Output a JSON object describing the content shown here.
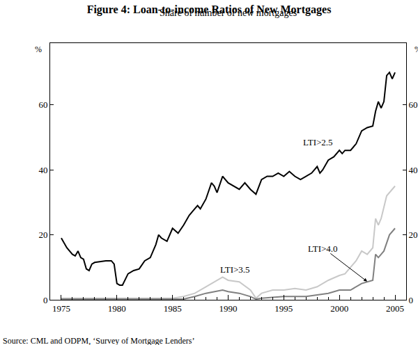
{
  "chart_data": {
    "type": "line",
    "title": "Figure 4: Loan-to-income Ratios of New Mortgages",
    "subtitle": "Share of number of new mortgages",
    "source": "Source: CML and ODPM, ‘Survey of Mortgage Lenders’",
    "ylabel": "%",
    "y2label": "%",
    "xlim": [
      1974,
      2006
    ],
    "xticks": [
      1975,
      1980,
      1985,
      1990,
      1995,
      2000,
      2005
    ],
    "ylim": [
      0,
      79
    ],
    "yticks": [
      0,
      20,
      40,
      60
    ],
    "y2lim": [
      0,
      79
    ],
    "y2ticks": [
      0,
      20,
      40,
      60
    ],
    "grid": false,
    "series": [
      {
        "name": "LTI>2.5",
        "color": "#000000",
        "x": [
          1975,
          1975.5,
          1976,
          1976.25,
          1976.5,
          1976.75,
          1977,
          1977.25,
          1977.5,
          1977.75,
          1978,
          1979,
          1979.5,
          1979.75,
          1980,
          1980.25,
          1980.5,
          1981,
          1981.5,
          1982,
          1982.5,
          1983,
          1983.5,
          1983.75,
          1984,
          1984.5,
          1985,
          1985.5,
          1986,
          1986.5,
          1987,
          1987.25,
          1987.5,
          1988,
          1988.5,
          1988.75,
          1989,
          1989.5,
          1990,
          1990.5,
          1991,
          1991.5,
          1992,
          1992.5,
          1993,
          1993.5,
          1994,
          1994.5,
          1995,
          1995.5,
          1996,
          1996.5,
          1997,
          1997.5,
          1998,
          1998.25,
          1998.5,
          1999,
          1999.5,
          2000,
          2000.25,
          2000.5,
          2001,
          2001.5,
          2002,
          2002.5,
          2003,
          2003.25,
          2003.5,
          2003.75,
          2004,
          2004.25,
          2004.5,
          2004.75,
          2005
        ],
        "values": [
          19,
          16,
          14,
          13.5,
          15,
          13,
          12.5,
          9.5,
          9,
          11,
          11.5,
          12,
          12,
          11,
          5,
          4.5,
          4.5,
          8,
          9,
          9.5,
          12,
          13,
          17,
          20,
          19,
          18,
          22,
          20.5,
          23,
          26,
          28,
          29,
          28,
          31,
          36,
          35,
          33,
          38,
          36,
          35,
          34,
          36,
          34,
          32.5,
          37,
          38,
          38,
          39,
          38,
          39.5,
          38,
          37,
          38,
          39,
          41,
          39,
          40,
          43,
          44,
          46,
          45,
          46,
          46,
          48,
          52,
          53,
          53.5,
          58,
          61,
          59,
          61,
          69,
          70,
          68,
          70
        ]
      },
      {
        "name": "LTI>3.5",
        "color": "#c8c8c8",
        "x": [
          1975,
          1980,
          1985,
          1986,
          1987,
          1988,
          1989,
          1989.5,
          1990,
          1991,
          1992,
          1992.5,
          1993,
          1994,
          1995,
          1996,
          1997,
          1998,
          1999,
          2000,
          2000.5,
          2001,
          2001.5,
          2002,
          2002.5,
          2003,
          2003.25,
          2003.5,
          2003.75,
          2004.25,
          2004.5,
          2005
        ],
        "values": [
          0.5,
          0.5,
          0.5,
          1,
          2,
          4,
          6,
          7,
          6,
          5.5,
          3,
          0.5,
          2,
          3,
          3,
          3.5,
          3,
          4,
          6,
          7.5,
          8,
          10,
          12,
          15,
          14,
          16,
          25,
          23,
          25,
          32,
          33,
          35
        ]
      },
      {
        "name": "LTI>4.0",
        "color": "#808080",
        "x": [
          1975,
          1980,
          1986,
          1987,
          1988,
          1989.5,
          1990,
          1991,
          1992,
          1992.5,
          1993,
          1995,
          1997,
          1998,
          1999,
          2000,
          2001,
          2002,
          2002.5,
          2003,
          2003.25,
          2003.5,
          2004,
          2004.5,
          2005
        ],
        "values": [
          0.2,
          0.2,
          0.2,
          1,
          2,
          3,
          2.5,
          2,
          1,
          0.2,
          0.5,
          1,
          1,
          1.5,
          2,
          3,
          3,
          5,
          5.5,
          6,
          14,
          13,
          15,
          20,
          22
        ]
      }
    ]
  }
}
